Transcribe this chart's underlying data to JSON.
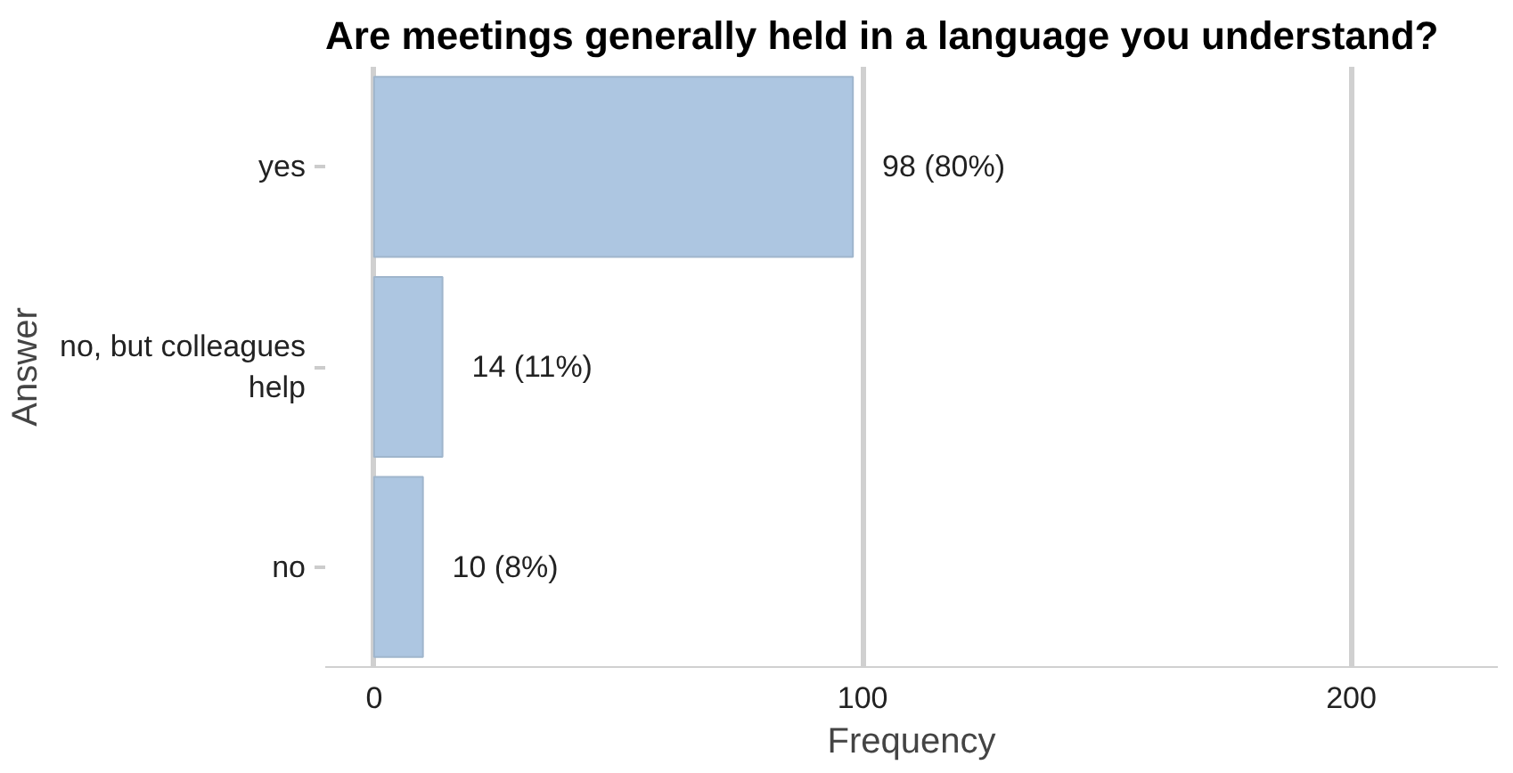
{
  "chart_data": {
    "type": "bar",
    "orientation": "horizontal",
    "title": "Are meetings generally held in a language you understand?",
    "xlabel": "Frequency",
    "ylabel": "Answer",
    "categories": [
      "yes",
      "no, but colleagues\nhelp",
      "no"
    ],
    "values": [
      98,
      14,
      10
    ],
    "value_labels": [
      "98 (80%)",
      "14 (11%)",
      "10 (8%)"
    ],
    "color": "#adc6e1",
    "xlim": [
      -10,
      230
    ],
    "xticks": [
      0,
      100,
      200
    ],
    "grid": "x"
  }
}
